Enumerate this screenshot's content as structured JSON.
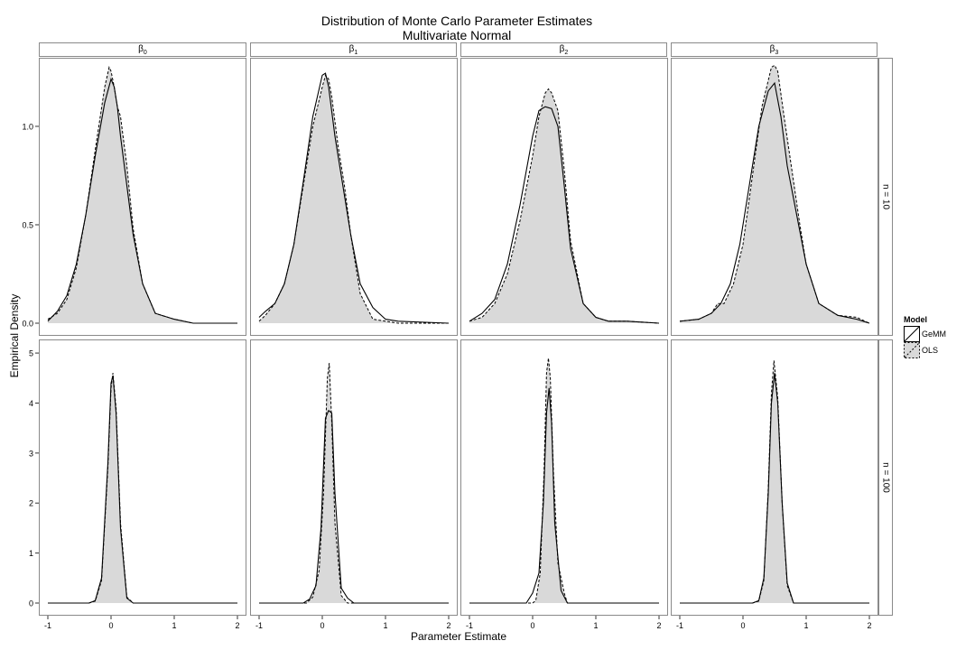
{
  "chart_data": {
    "type": "area",
    "title": "Distribution of Monte Carlo Parameter Estimates",
    "subtitle": "Multivariate Normal",
    "xlabel": "Parameter Estimate",
    "ylabel": "Empirical Density",
    "xlim": [
      -1,
      2
    ],
    "x_ticks": [
      "-1",
      "0",
      "1",
      "2"
    ],
    "grid": false,
    "legend_position": "right",
    "legend": {
      "title": "Model",
      "entries": [
        {
          "label": "GeMM",
          "line": "solid",
          "fill": "none"
        },
        {
          "label": "OLS",
          "line": "dashed",
          "fill": "#d9d9d9"
        }
      ]
    },
    "columns": [
      {
        "label": "β",
        "sub": "0"
      },
      {
        "label": "β",
        "sub": "1"
      },
      {
        "label": "β",
        "sub": "2"
      },
      {
        "label": "β",
        "sub": "3"
      }
    ],
    "rows": [
      {
        "label": "n = 10",
        "ylim": [
          0,
          1.33
        ],
        "y_ticks": [
          0,
          0.5,
          1.0
        ],
        "y_tick_labels": [
          "0.0",
          "0.5",
          "1.0"
        ]
      },
      {
        "label": "n = 100",
        "ylim": [
          0,
          5.2
        ],
        "y_ticks": [
          0,
          1,
          2,
          3,
          4,
          5
        ],
        "y_tick_labels": [
          "0",
          "1",
          "2",
          "3",
          "4",
          "5"
        ]
      }
    ],
    "panels": [
      {
        "row": 0,
        "col": 0,
        "series": [
          {
            "name": "GeMM",
            "x": [
              -1.0,
              -0.85,
              -0.7,
              -0.55,
              -0.4,
              -0.25,
              -0.1,
              0.0,
              0.05,
              0.1,
              0.15,
              0.25,
              0.35,
              0.5,
              0.7,
              1.0,
              1.3,
              2.0
            ],
            "y": [
              0.01,
              0.06,
              0.14,
              0.3,
              0.55,
              0.85,
              1.12,
              1.24,
              1.2,
              1.1,
              0.95,
              0.7,
              0.45,
              0.2,
              0.05,
              0.02,
              0.0,
              0.0
            ]
          },
          {
            "name": "OLS",
            "x": [
              -1.0,
              -0.85,
              -0.7,
              -0.55,
              -0.4,
              -0.25,
              -0.1,
              -0.03,
              0.0,
              0.05,
              0.1,
              0.15,
              0.25,
              0.35,
              0.5,
              0.7,
              1.0,
              1.3,
              2.0
            ],
            "y": [
              0.02,
              0.05,
              0.12,
              0.28,
              0.55,
              0.88,
              1.2,
              1.3,
              1.28,
              1.2,
              1.1,
              1.05,
              0.8,
              0.48,
              0.2,
              0.05,
              0.02,
              0.0,
              0.0
            ]
          }
        ]
      },
      {
        "row": 0,
        "col": 1,
        "series": [
          {
            "name": "GeMM",
            "x": [
              -1.0,
              -0.9,
              -0.75,
              -0.6,
              -0.45,
              -0.3,
              -0.15,
              0.0,
              0.05,
              0.1,
              0.2,
              0.3,
              0.45,
              0.6,
              0.8,
              1.0,
              1.2,
              2.0
            ],
            "y": [
              0.03,
              0.06,
              0.1,
              0.2,
              0.4,
              0.72,
              1.05,
              1.26,
              1.27,
              1.2,
              0.95,
              0.75,
              0.45,
              0.2,
              0.08,
              0.02,
              0.01,
              0.0
            ]
          },
          {
            "name": "OLS",
            "x": [
              -1.0,
              -0.9,
              -0.75,
              -0.6,
              -0.45,
              -0.3,
              -0.15,
              0.0,
              0.05,
              0.1,
              0.15,
              0.25,
              0.35,
              0.45,
              0.6,
              0.8,
              1.0,
              1.2,
              2.0
            ],
            "y": [
              0.01,
              0.04,
              0.1,
              0.2,
              0.4,
              0.7,
              1.0,
              1.2,
              1.26,
              1.24,
              1.15,
              0.9,
              0.7,
              0.45,
              0.15,
              0.02,
              0.01,
              0.0,
              0.0
            ]
          }
        ]
      },
      {
        "row": 0,
        "col": 2,
        "series": [
          {
            "name": "GeMM",
            "x": [
              -1.0,
              -0.8,
              -0.6,
              -0.4,
              -0.2,
              0.0,
              0.1,
              0.2,
              0.3,
              0.4,
              0.5,
              0.6,
              0.8,
              1.0,
              1.2,
              1.5,
              2.0
            ],
            "y": [
              0.01,
              0.05,
              0.12,
              0.3,
              0.6,
              0.95,
              1.08,
              1.1,
              1.09,
              1.0,
              0.7,
              0.38,
              0.1,
              0.03,
              0.01,
              0.01,
              0.0
            ]
          },
          {
            "name": "OLS",
            "x": [
              -1.0,
              -0.8,
              -0.6,
              -0.4,
              -0.2,
              0.0,
              0.1,
              0.2,
              0.25,
              0.3,
              0.4,
              0.5,
              0.6,
              0.8,
              1.0,
              1.2,
              1.5,
              2.0
            ],
            "y": [
              0.01,
              0.03,
              0.1,
              0.25,
              0.52,
              0.85,
              1.05,
              1.17,
              1.19,
              1.17,
              1.08,
              0.78,
              0.42,
              0.1,
              0.03,
              0.01,
              0.01,
              0.0
            ]
          }
        ]
      },
      {
        "row": 0,
        "col": 3,
        "series": [
          {
            "name": "GeMM",
            "x": [
              -1.0,
              -0.7,
              -0.5,
              -0.35,
              -0.2,
              -0.05,
              0.1,
              0.25,
              0.4,
              0.5,
              0.6,
              0.7,
              0.85,
              1.0,
              1.2,
              1.5,
              1.8,
              2.0
            ],
            "y": [
              0.01,
              0.02,
              0.05,
              0.1,
              0.2,
              0.4,
              0.7,
              1.0,
              1.18,
              1.22,
              1.05,
              0.8,
              0.55,
              0.3,
              0.1,
              0.04,
              0.02,
              0.0
            ]
          },
          {
            "name": "OLS",
            "x": [
              -1.0,
              -0.7,
              -0.5,
              -0.4,
              -0.3,
              -0.15,
              0.0,
              0.15,
              0.3,
              0.45,
              0.5,
              0.55,
              0.65,
              0.8,
              0.9,
              1.0,
              1.2,
              1.5,
              1.8,
              2.0
            ],
            "y": [
              0.01,
              0.02,
              0.05,
              0.1,
              0.1,
              0.2,
              0.4,
              0.75,
              1.1,
              1.3,
              1.31,
              1.28,
              1.05,
              0.72,
              0.5,
              0.3,
              0.1,
              0.04,
              0.03,
              0.0
            ]
          }
        ]
      },
      {
        "row": 1,
        "col": 0,
        "series": [
          {
            "name": "GeMM",
            "x": [
              -1.0,
              -0.35,
              -0.25,
              -0.15,
              -0.05,
              0.0,
              0.03,
              0.08,
              0.15,
              0.25,
              0.35,
              2.0
            ],
            "y": [
              0.0,
              0.0,
              0.05,
              0.5,
              2.8,
              4.4,
              4.55,
              3.8,
              1.5,
              0.1,
              0.0,
              0.0
            ]
          },
          {
            "name": "OLS",
            "x": [
              -1.0,
              -0.35,
              -0.25,
              -0.15,
              -0.05,
              0.0,
              0.03,
              0.08,
              0.15,
              0.25,
              0.35,
              2.0
            ],
            "y": [
              0.0,
              0.0,
              0.04,
              0.45,
              2.7,
              4.3,
              4.6,
              3.9,
              1.6,
              0.12,
              0.0,
              0.0
            ]
          }
        ]
      },
      {
        "row": 1,
        "col": 1,
        "series": [
          {
            "name": "GeMM",
            "x": [
              -1.0,
              -0.3,
              -0.2,
              -0.1,
              -0.02,
              0.05,
              0.1,
              0.15,
              0.2,
              0.3,
              0.4,
              0.5,
              2.0
            ],
            "y": [
              0.0,
              0.0,
              0.08,
              0.35,
              1.5,
              3.7,
              3.85,
              3.8,
              2.2,
              0.3,
              0.1,
              0.0,
              0.0
            ]
          },
          {
            "name": "OLS",
            "x": [
              -1.0,
              -0.25,
              -0.15,
              -0.05,
              0.02,
              0.08,
              0.11,
              0.15,
              0.2,
              0.3,
              0.4,
              2.0
            ],
            "y": [
              0.0,
              0.0,
              0.12,
              0.65,
              2.2,
              4.5,
              4.8,
              3.6,
              1.6,
              0.15,
              0.0,
              0.0
            ]
          }
        ]
      },
      {
        "row": 1,
        "col": 2,
        "series": [
          {
            "name": "GeMM",
            "x": [
              -1.0,
              -0.1,
              0.0,
              0.1,
              0.17,
              0.22,
              0.26,
              0.3,
              0.35,
              0.45,
              0.55,
              2.0
            ],
            "y": [
              0.0,
              0.0,
              0.2,
              0.6,
              2.0,
              3.8,
              4.3,
              3.6,
              1.6,
              0.25,
              0.0,
              0.0
            ]
          },
          {
            "name": "OLS",
            "x": [
              -1.0,
              0.0,
              0.05,
              0.12,
              0.18,
              0.22,
              0.25,
              0.28,
              0.33,
              0.4,
              0.5,
              0.55,
              2.0
            ],
            "y": [
              0.0,
              0.0,
              0.05,
              0.6,
              2.6,
              4.6,
              4.9,
              4.5,
              2.6,
              0.8,
              0.2,
              0.0,
              0.0
            ]
          }
        ]
      },
      {
        "row": 1,
        "col": 3,
        "series": [
          {
            "name": "GeMM",
            "x": [
              -1.0,
              0.15,
              0.25,
              0.33,
              0.4,
              0.45,
              0.5,
              0.55,
              0.62,
              0.7,
              0.8,
              2.0
            ],
            "y": [
              0.0,
              0.0,
              0.05,
              0.5,
              2.2,
              4.0,
              4.6,
              4.0,
              2.0,
              0.4,
              0.0,
              0.0
            ]
          },
          {
            "name": "OLS",
            "x": [
              -1.0,
              0.15,
              0.25,
              0.33,
              0.4,
              0.45,
              0.49,
              0.55,
              0.62,
              0.7,
              0.8,
              2.0
            ],
            "y": [
              0.0,
              0.0,
              0.04,
              0.45,
              2.3,
              4.2,
              4.85,
              4.1,
              2.0,
              0.35,
              0.0,
              0.0
            ]
          }
        ]
      }
    ]
  },
  "colors": {
    "fill": "#d9d9d9",
    "line": "#000000",
    "panel_border": "#8a8a8a",
    "gemm_inner": "#777777"
  }
}
